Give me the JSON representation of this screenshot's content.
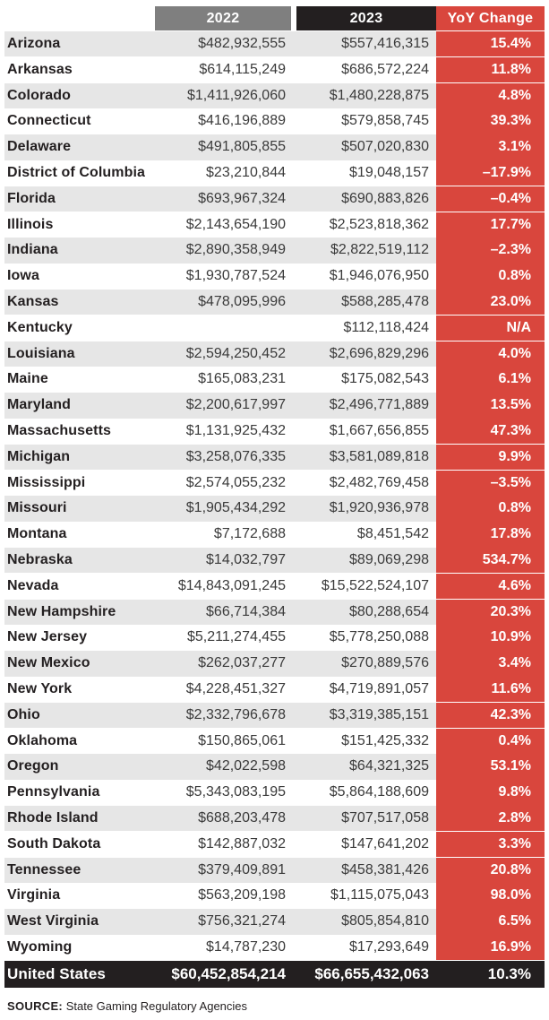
{
  "columns": {
    "year1": "2022",
    "year2": "2023",
    "change": "YoY Change"
  },
  "colors": {
    "header_2022": "#7f7f7f",
    "header_2023": "#231f20",
    "yoy_red": "#d9463d",
    "row_alt": "#e6e6e6",
    "row_base": "#ffffff",
    "total_bg": "#231f20"
  },
  "chart_data": {
    "type": "table",
    "columns": [
      "",
      "2022",
      "2023",
      "YoY Change"
    ],
    "rows": [
      {
        "state": "Arizona",
        "y2022": "$482,932,555",
        "y2023": "$557,416,315",
        "yoy": "15.4%"
      },
      {
        "state": "Arkansas",
        "y2022": "$614,115,249",
        "y2023": "$686,572,224",
        "yoy": "11.8%"
      },
      {
        "state": "Colorado",
        "y2022": "$1,411,926,060",
        "y2023": "$1,480,228,875",
        "yoy": "4.8%"
      },
      {
        "state": "Connecticut",
        "y2022": "$416,196,889",
        "y2023": "$579,858,745",
        "yoy": "39.3%"
      },
      {
        "state": "Delaware",
        "y2022": "$491,805,855",
        "y2023": "$507,020,830",
        "yoy": "3.1%"
      },
      {
        "state": "District of Columbia",
        "y2022": "$23,210,844",
        "y2023": "$19,048,157",
        "yoy": "–17.9%"
      },
      {
        "state": "Florida",
        "y2022": "$693,967,324",
        "y2023": "$690,883,826",
        "yoy": "–0.4%"
      },
      {
        "state": "Illinois",
        "y2022": "$2,143,654,190",
        "y2023": "$2,523,818,362",
        "yoy": "17.7%"
      },
      {
        "state": "Indiana",
        "y2022": "$2,890,358,949",
        "y2023": "$2,822,519,112",
        "yoy": "–2.3%"
      },
      {
        "state": "Iowa",
        "y2022": "$1,930,787,524",
        "y2023": "$1,946,076,950",
        "yoy": "0.8%"
      },
      {
        "state": "Kansas",
        "y2022": "$478,095,996",
        "y2023": "$588,285,478",
        "yoy": "23.0%"
      },
      {
        "state": "Kentucky",
        "y2022": "",
        "y2023": "$112,118,424",
        "yoy": "N/A"
      },
      {
        "state": "Louisiana",
        "y2022": "$2,594,250,452",
        "y2023": "$2,696,829,296",
        "yoy": "4.0%"
      },
      {
        "state": "Maine",
        "y2022": "$165,083,231",
        "y2023": "$175,082,543",
        "yoy": "6.1%"
      },
      {
        "state": "Maryland",
        "y2022": "$2,200,617,997",
        "y2023": "$2,496,771,889",
        "yoy": "13.5%"
      },
      {
        "state": "Massachusetts",
        "y2022": "$1,131,925,432",
        "y2023": "$1,667,656,855",
        "yoy": "47.3%"
      },
      {
        "state": "Michigan",
        "y2022": "$3,258,076,335",
        "y2023": "$3,581,089,818",
        "yoy": "9.9%"
      },
      {
        "state": "Mississippi",
        "y2022": "$2,574,055,232",
        "y2023": "$2,482,769,458",
        "yoy": "–3.5%"
      },
      {
        "state": "Missouri",
        "y2022": "$1,905,434,292",
        "y2023": "$1,920,936,978",
        "yoy": "0.8%"
      },
      {
        "state": "Montana",
        "y2022": "$7,172,688",
        "y2023": "$8,451,542",
        "yoy": "17.8%"
      },
      {
        "state": "Nebraska",
        "y2022": "$14,032,797",
        "y2023": "$89,069,298",
        "yoy": "534.7%"
      },
      {
        "state": "Nevada",
        "y2022": "$14,843,091,245",
        "y2023": "$15,522,524,107",
        "yoy": "4.6%"
      },
      {
        "state": "New Hampshire",
        "y2022": "$66,714,384",
        "y2023": "$80,288,654",
        "yoy": "20.3%"
      },
      {
        "state": "New Jersey",
        "y2022": "$5,211,274,455",
        "y2023": "$5,778,250,088",
        "yoy": "10.9%"
      },
      {
        "state": "New Mexico",
        "y2022": "$262,037,277",
        "y2023": "$270,889,576",
        "yoy": "3.4%"
      },
      {
        "state": "New York",
        "y2022": "$4,228,451,327",
        "y2023": "$4,719,891,057",
        "yoy": "11.6%"
      },
      {
        "state": "Ohio",
        "y2022": "$2,332,796,678",
        "y2023": "$3,319,385,151",
        "yoy": "42.3%"
      },
      {
        "state": "Oklahoma",
        "y2022": "$150,865,061",
        "y2023": "$151,425,332",
        "yoy": "0.4%"
      },
      {
        "state": "Oregon",
        "y2022": "$42,022,598",
        "y2023": "$64,321,325",
        "yoy": "53.1%"
      },
      {
        "state": "Pennsylvania",
        "y2022": "$5,343,083,195",
        "y2023": "$5,864,188,609",
        "yoy": "9.8%"
      },
      {
        "state": "Rhode Island",
        "y2022": "$688,203,478",
        "y2023": "$707,517,058",
        "yoy": "2.8%"
      },
      {
        "state": "South Dakota",
        "y2022": "$142,887,032",
        "y2023": "$147,641,202",
        "yoy": "3.3%"
      },
      {
        "state": "Tennessee",
        "y2022": "$379,409,891",
        "y2023": "$458,381,426",
        "yoy": "20.8%"
      },
      {
        "state": "Virginia",
        "y2022": "$563,209,198",
        "y2023": "$1,115,075,043",
        "yoy": "98.0%"
      },
      {
        "state": "West Virginia",
        "y2022": "$756,321,274",
        "y2023": "$805,854,810",
        "yoy": "6.5%"
      },
      {
        "state": "Wyoming",
        "y2022": "$14,787,230",
        "y2023": "$17,293,649",
        "yoy": "16.9%"
      }
    ],
    "total": {
      "state": "United States",
      "y2022": "$60,452,854,214",
      "y2023": "$66,655,432,063",
      "yoy": "10.3%"
    }
  },
  "source": {
    "label": "SOURCE:",
    "text": "State Gaming Regulatory Agencies"
  }
}
